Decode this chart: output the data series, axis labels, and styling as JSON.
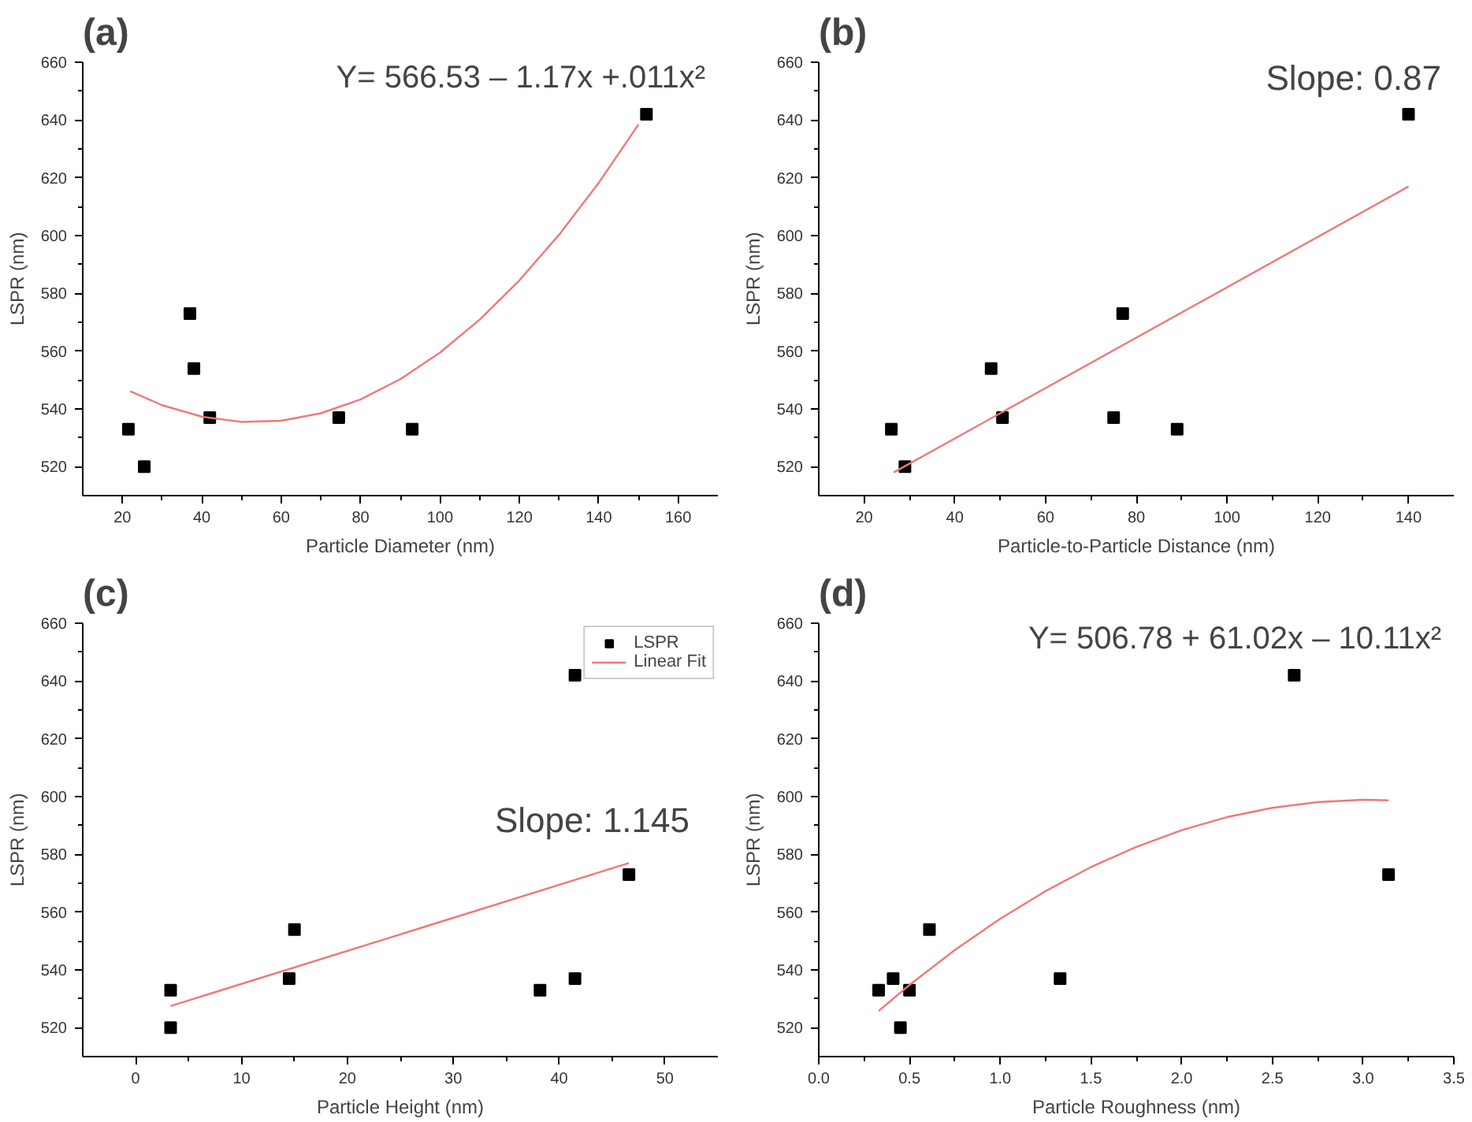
{
  "chart_data": [
    {
      "type": "scatter",
      "title": "(a)",
      "xlabel": "Particle Diameter (nm)",
      "ylabel": "LSPR (nm)",
      "xlim": [
        10,
        170
      ],
      "xticks": [
        20,
        40,
        60,
        80,
        100,
        120,
        140,
        160
      ],
      "ylim": [
        510,
        660
      ],
      "yticks": [
        520,
        540,
        560,
        580,
        600,
        620,
        640,
        660
      ],
      "annotations": [
        "Y= 566.53 – 1.17x +.011x²"
      ],
      "series": [
        {
          "marker": "square",
          "color": "#000000",
          "x": [
            21.5,
            25.5,
            37,
            38,
            42,
            74.5,
            93,
            152
          ],
          "values": [
            533,
            520,
            573,
            554,
            537,
            537,
            533,
            642
          ]
        },
        {
          "type": "line",
          "color": "#f07878",
          "x": [
            22,
            30,
            40,
            50,
            60,
            70,
            80,
            90,
            100,
            110,
            120,
            130,
            140,
            150
          ],
          "values": [
            546.1,
            541.3,
            537.3,
            535.5,
            535.9,
            538.5,
            543.3,
            550.3,
            559.5,
            570.9,
            584.5,
            600.3,
            618.3,
            638.5
          ]
        }
      ]
    },
    {
      "type": "scatter",
      "title": "(b)",
      "xlabel": "Particle-to-Particle Distance (nm)",
      "ylabel": "LSPR (nm)",
      "xlim": [
        10,
        150
      ],
      "xticks": [
        20,
        40,
        60,
        80,
        100,
        120,
        140
      ],
      "ylim": [
        510,
        660
      ],
      "yticks": [
        520,
        540,
        560,
        580,
        600,
        620,
        640,
        660
      ],
      "annotations": [
        "Slope: 0.87"
      ],
      "series": [
        {
          "marker": "square",
          "color": "#000000",
          "x": [
            26,
            29,
            48,
            50.5,
            75,
            77,
            89,
            140
          ],
          "values": [
            533,
            520,
            554,
            537,
            537,
            573,
            533,
            642
          ]
        },
        {
          "type": "line",
          "color": "#f07878",
          "x": [
            26.5,
            140
          ],
          "values": [
            518,
            617
          ]
        }
      ]
    },
    {
      "type": "scatter",
      "title": "(c)",
      "xlabel": "Particle Height (nm)",
      "ylabel": "LSPR (nm)",
      "xlim": [
        -5,
        55
      ],
      "xticks": [
        0,
        10,
        20,
        30,
        40,
        50
      ],
      "ylim": [
        510,
        660
      ],
      "yticks": [
        520,
        540,
        560,
        580,
        600,
        620,
        640,
        660
      ],
      "legend": "top right",
      "annotations": [
        "Slope: 1.145"
      ],
      "series": [
        {
          "name": "LSPR",
          "marker": "square",
          "color": "#000000",
          "x": [
            3.3,
            3.3,
            14.5,
            15,
            38.2,
            41.5,
            41.5,
            46.6
          ],
          "values": [
            533,
            520,
            537,
            554,
            533,
            642,
            537,
            573
          ]
        },
        {
          "name": "Linear Fit",
          "type": "line",
          "color": "#f07878",
          "x": [
            3.3,
            46.6
          ],
          "values": [
            527.5,
            577
          ]
        }
      ]
    },
    {
      "type": "scatter",
      "title": "(d)",
      "xlabel": "Particle Roughness (nm)",
      "ylabel": "LSPR (nm)",
      "xlim": [
        0,
        3.5
      ],
      "xticks": [
        {
          "value": 0,
          "label": "0.0"
        },
        0.5,
        {
          "value": 1,
          "label": "1.0"
        },
        1.5,
        {
          "value": 2,
          "label": "2.0"
        },
        2.5,
        {
          "value": 3,
          "label": "3.0"
        },
        3.5
      ],
      "ylim": [
        510,
        660
      ],
      "yticks": [
        520,
        540,
        560,
        580,
        600,
        620,
        640,
        660
      ],
      "annotations": [
        "Y= 506.78 + 61.02x – 10.11x²"
      ],
      "series": [
        {
          "marker": "square",
          "color": "#000000",
          "x": [
            0.33,
            0.41,
            0.45,
            0.5,
            0.61,
            1.33,
            2.62,
            3.14
          ],
          "values": [
            533,
            537,
            520,
            533,
            554,
            537,
            642,
            573
          ]
        },
        {
          "type": "line",
          "color": "#f07878",
          "x": [
            0.33,
            0.5,
            0.75,
            1.0,
            1.25,
            1.5,
            1.75,
            2.0,
            2.25,
            2.5,
            2.75,
            3.0,
            3.14
          ],
          "values": [
            525.8,
            534.8,
            546.9,
            557.7,
            567.3,
            575.6,
            582.6,
            588.4,
            592.9,
            596.1,
            598.1,
            598.9,
            598.7
          ]
        }
      ]
    }
  ]
}
